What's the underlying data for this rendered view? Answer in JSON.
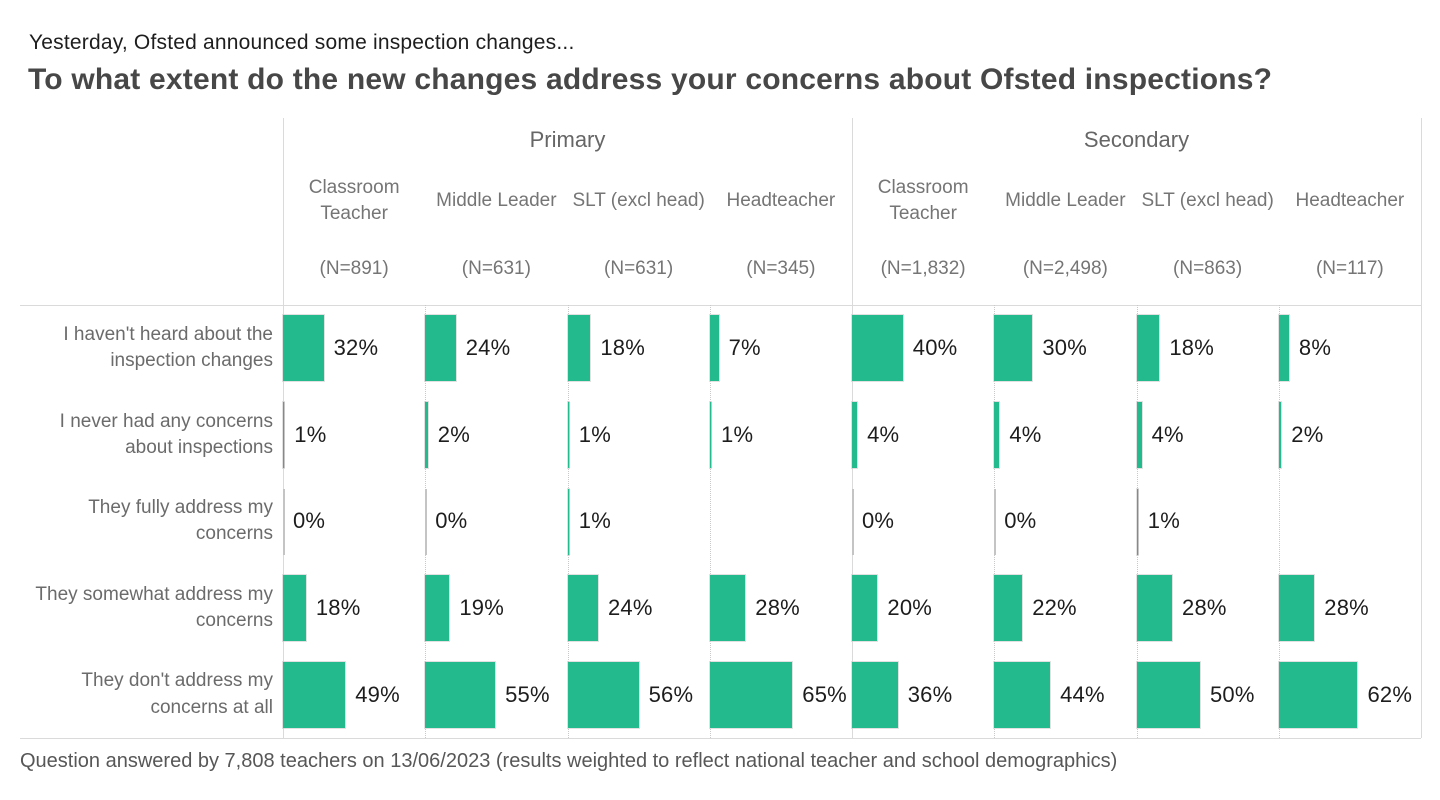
{
  "chart_data": {
    "type": "bar",
    "orientation": "horizontal-small-multiples",
    "subtitle": "Yesterday, Ofsted announced some inspection changes...",
    "title": "To what extent do the new changes address your concerns about Ofsted inspections?",
    "unit": "%",
    "bar_color": "#23BB8D",
    "value_range": [
      0,
      100
    ],
    "rows": [
      "I haven't heard about the inspection changes",
      "I never had any concerns about inspections",
      "They fully address my concerns",
      "They somewhat address my concerns",
      "They don't address my concerns at all"
    ],
    "groups": [
      {
        "label": "Primary",
        "columns": [
          {
            "role": "Classroom Teacher",
            "n": "(N=891)",
            "values": [
              32,
              1,
              0,
              18,
              49
            ]
          },
          {
            "role": "Middle Leader",
            "n": "(N=631)",
            "values": [
              24,
              2,
              0,
              19,
              55
            ]
          },
          {
            "role": "SLT (excl head)",
            "n": "(N=631)",
            "values": [
              18,
              1,
              1,
              24,
              56
            ]
          },
          {
            "role": "Headteacher",
            "n": "(N=345)",
            "values": [
              7,
              1,
              null,
              28,
              65
            ]
          }
        ]
      },
      {
        "label": "Secondary",
        "columns": [
          {
            "role": "Classroom Teacher",
            "n": "(N=1,832)",
            "values": [
              40,
              4,
              0,
              20,
              36
            ]
          },
          {
            "role": "Middle Leader",
            "n": "(N=2,498)",
            "values": [
              30,
              4,
              0,
              22,
              44
            ]
          },
          {
            "role": "SLT (excl head)",
            "n": "(N=863)",
            "values": [
              18,
              4,
              1,
              28,
              50
            ]
          },
          {
            "role": "Headteacher",
            "n": "(N=117)",
            "values": [
              8,
              2,
              null,
              28,
              62
            ]
          }
        ]
      }
    ],
    "footnote": "Question answered by 7,808 teachers on 13/06/2023 (results weighted to reflect national teacher and school demographics)"
  }
}
